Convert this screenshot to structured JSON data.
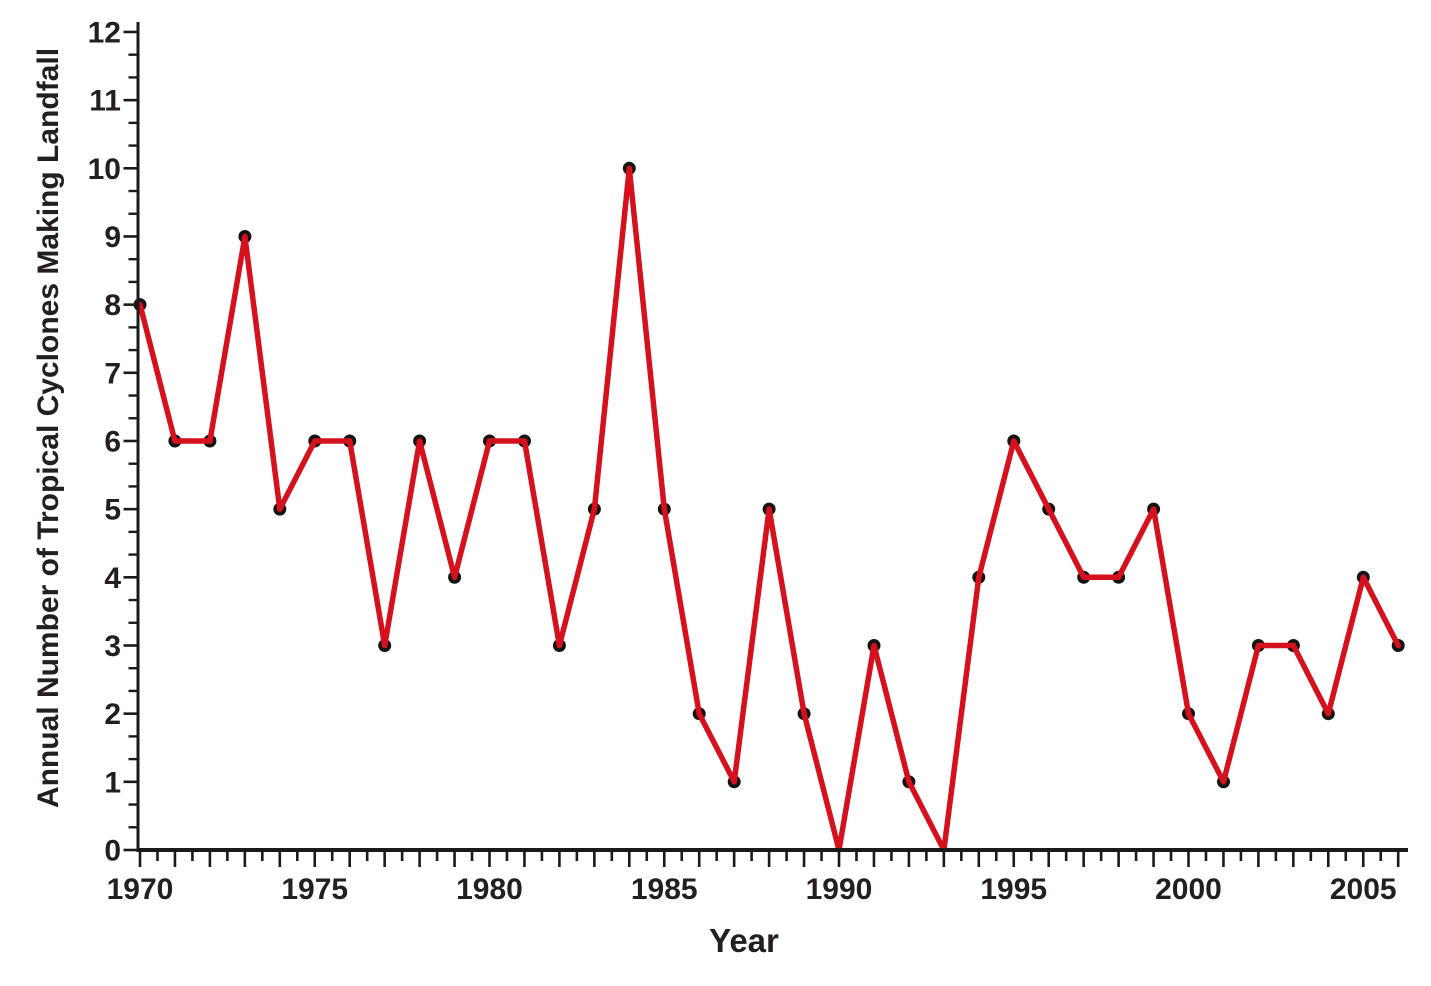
{
  "chart_data": {
    "type": "line",
    "title": "",
    "xlabel": "Year",
    "ylabel": "Annual Number of Tropical Cyclones Making Landfall",
    "x": [
      1970,
      1971,
      1972,
      1973,
      1974,
      1975,
      1976,
      1977,
      1978,
      1979,
      1980,
      1981,
      1982,
      1983,
      1984,
      1985,
      1986,
      1987,
      1988,
      1989,
      1990,
      1991,
      1992,
      1993,
      1994,
      1995,
      1996,
      1997,
      1998,
      1999,
      2000,
      2001,
      2002,
      2003,
      2004,
      2005,
      2006
    ],
    "values": [
      8,
      6,
      6,
      9,
      5,
      6,
      6,
      3,
      6,
      4,
      6,
      6,
      3,
      5,
      10,
      5,
      2,
      1,
      5,
      2,
      0,
      3,
      1,
      0,
      4,
      6,
      5,
      4,
      4,
      5,
      2,
      1,
      3,
      3,
      2,
      4,
      3
    ],
    "xlim": [
      1969.95,
      2006.25
    ],
    "ylim": [
      0,
      12
    ],
    "x_major_tick_labels": [
      1970,
      1975,
      1980,
      1985,
      1990,
      1995,
      2000,
      2005
    ],
    "x_tick_every_years": 1,
    "x_minor_tick_every_years": 0.5,
    "y_tick_every": 1,
    "y_minor_divisions_per_unit": 3,
    "y_tick_labels": [
      0,
      1,
      2,
      3,
      4,
      5,
      6,
      7,
      8,
      9,
      10,
      11,
      12
    ],
    "grid": false,
    "legend_position": "none",
    "line_color": "#d6111e",
    "marker_color": "#161412",
    "axis_color": "#1a1a1a",
    "text_color": "#231f20",
    "background_color": "#ffffff"
  }
}
